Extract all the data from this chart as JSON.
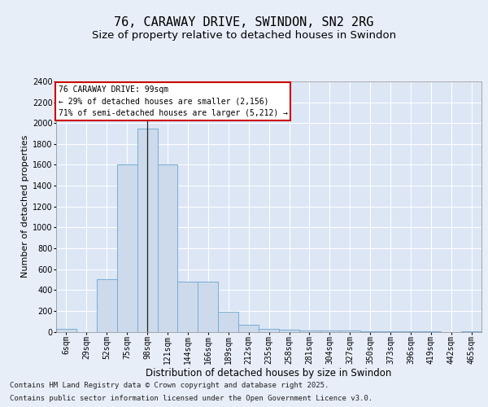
{
  "title": "76, CARAWAY DRIVE, SWINDON, SN2 2RG",
  "subtitle": "Size of property relative to detached houses in Swindon",
  "xlabel": "Distribution of detached houses by size in Swindon",
  "ylabel": "Number of detached properties",
  "categories": [
    "6sqm",
    "29sqm",
    "52sqm",
    "75sqm",
    "98sqm",
    "121sqm",
    "144sqm",
    "166sqm",
    "189sqm",
    "212sqm",
    "235sqm",
    "258sqm",
    "281sqm",
    "304sqm",
    "327sqm",
    "350sqm",
    "373sqm",
    "396sqm",
    "419sqm",
    "442sqm",
    "465sqm"
  ],
  "values": [
    30,
    0,
    500,
    1600,
    1950,
    1600,
    480,
    480,
    195,
    70,
    30,
    20,
    15,
    10,
    8,
    5,
    4,
    3,
    2,
    0,
    2
  ],
  "bar_color": "#ccdaeb",
  "bar_edge_color": "#7aacd4",
  "vline_x_index": 4,
  "annotation_text": "76 CARAWAY DRIVE: 99sqm\n← 29% of detached houses are smaller (2,156)\n71% of semi-detached houses are larger (5,212) →",
  "annotation_box_facecolor": "#ffffff",
  "annotation_box_edgecolor": "#cc0000",
  "ylim": [
    0,
    2400
  ],
  "yticks": [
    0,
    200,
    400,
    600,
    800,
    1000,
    1200,
    1400,
    1600,
    1800,
    2000,
    2200,
    2400
  ],
  "fig_bg": "#e8eef8",
  "axes_bg": "#dce6f5",
  "grid_color": "#ffffff",
  "footer_line1": "Contains HM Land Registry data © Crown copyright and database right 2025.",
  "footer_line2": "Contains public sector information licensed under the Open Government Licence v3.0.",
  "title_fontsize": 11,
  "subtitle_fontsize": 9.5,
  "tick_fontsize": 7,
  "ylabel_fontsize": 8,
  "xlabel_fontsize": 8.5,
  "annotation_fontsize": 7,
  "footer_fontsize": 6.5
}
